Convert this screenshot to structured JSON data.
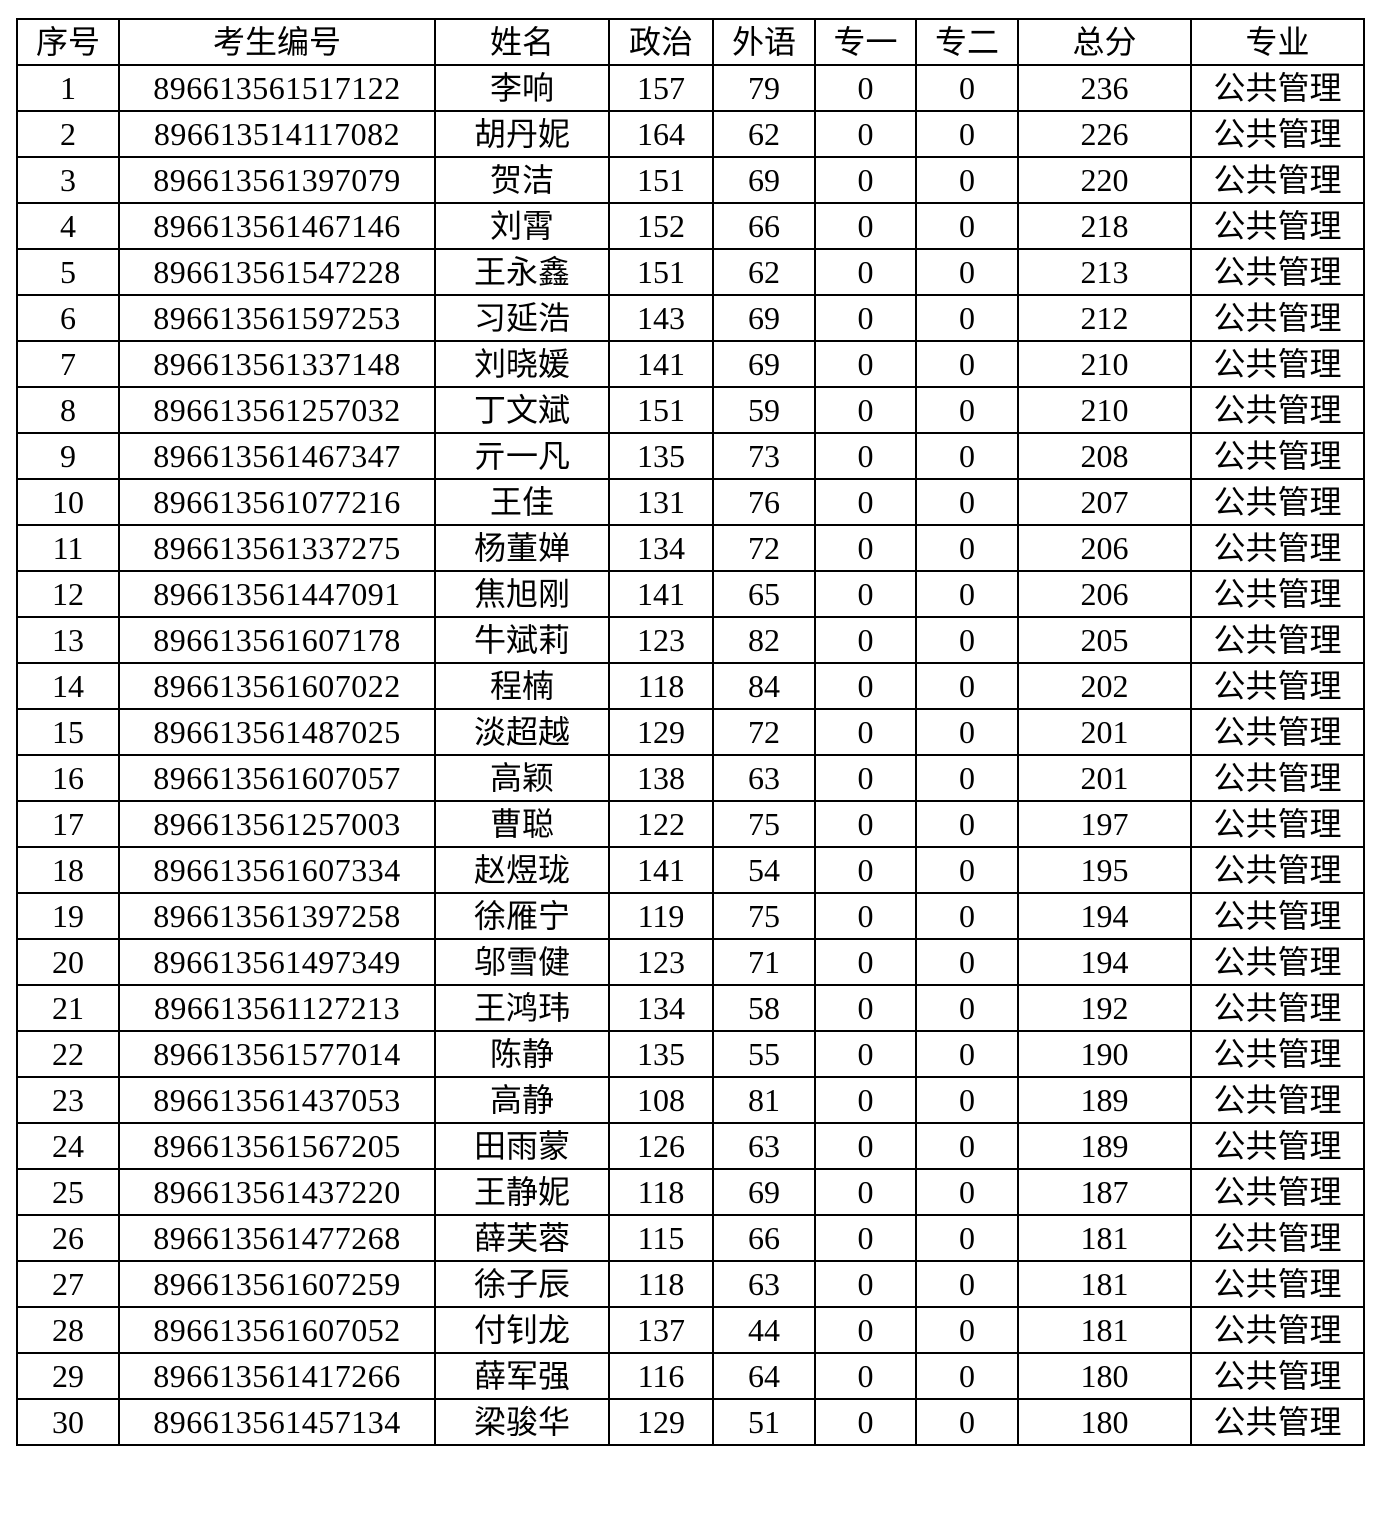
{
  "table": {
    "headers": [
      "序号",
      "考生编号",
      "姓名",
      "政治",
      "外语",
      "专一",
      "专二",
      "总分",
      "专业"
    ],
    "rows": [
      [
        "1",
        "896613561517122",
        "李响",
        "157",
        "79",
        "0",
        "0",
        "236",
        "公共管理"
      ],
      [
        "2",
        "896613514117082",
        "胡丹妮",
        "164",
        "62",
        "0",
        "0",
        "226",
        "公共管理"
      ],
      [
        "3",
        "896613561397079",
        "贺洁",
        "151",
        "69",
        "0",
        "0",
        "220",
        "公共管理"
      ],
      [
        "4",
        "896613561467146",
        "刘霄",
        "152",
        "66",
        "0",
        "0",
        "218",
        "公共管理"
      ],
      [
        "5",
        "896613561547228",
        "王永鑫",
        "151",
        "62",
        "0",
        "0",
        "213",
        "公共管理"
      ],
      [
        "6",
        "896613561597253",
        "习延浩",
        "143",
        "69",
        "0",
        "0",
        "212",
        "公共管理"
      ],
      [
        "7",
        "896613561337148",
        "刘晓媛",
        "141",
        "69",
        "0",
        "0",
        "210",
        "公共管理"
      ],
      [
        "8",
        "896613561257032",
        "丁文斌",
        "151",
        "59",
        "0",
        "0",
        "210",
        "公共管理"
      ],
      [
        "9",
        "896613561467347",
        "亓一凡",
        "135",
        "73",
        "0",
        "0",
        "208",
        "公共管理"
      ],
      [
        "10",
        "896613561077216",
        "王佳",
        "131",
        "76",
        "0",
        "0",
        "207",
        "公共管理"
      ],
      [
        "11",
        "896613561337275",
        "杨董婵",
        "134",
        "72",
        "0",
        "0",
        "206",
        "公共管理"
      ],
      [
        "12",
        "896613561447091",
        "焦旭刚",
        "141",
        "65",
        "0",
        "0",
        "206",
        "公共管理"
      ],
      [
        "13",
        "896613561607178",
        "牛斌莉",
        "123",
        "82",
        "0",
        "0",
        "205",
        "公共管理"
      ],
      [
        "14",
        "896613561607022",
        "程楠",
        "118",
        "84",
        "0",
        "0",
        "202",
        "公共管理"
      ],
      [
        "15",
        "896613561487025",
        "淡超越",
        "129",
        "72",
        "0",
        "0",
        "201",
        "公共管理"
      ],
      [
        "16",
        "896613561607057",
        "高颖",
        "138",
        "63",
        "0",
        "0",
        "201",
        "公共管理"
      ],
      [
        "17",
        "896613561257003",
        "曹聪",
        "122",
        "75",
        "0",
        "0",
        "197",
        "公共管理"
      ],
      [
        "18",
        "896613561607334",
        "赵煜珑",
        "141",
        "54",
        "0",
        "0",
        "195",
        "公共管理"
      ],
      [
        "19",
        "896613561397258",
        "徐雁宁",
        "119",
        "75",
        "0",
        "0",
        "194",
        "公共管理"
      ],
      [
        "20",
        "896613561497349",
        "邬雪健",
        "123",
        "71",
        "0",
        "0",
        "194",
        "公共管理"
      ],
      [
        "21",
        "896613561127213",
        "王鸿玮",
        "134",
        "58",
        "0",
        "0",
        "192",
        "公共管理"
      ],
      [
        "22",
        "896613561577014",
        "陈静",
        "135",
        "55",
        "0",
        "0",
        "190",
        "公共管理"
      ],
      [
        "23",
        "896613561437053",
        "高静",
        "108",
        "81",
        "0",
        "0",
        "189",
        "公共管理"
      ],
      [
        "24",
        "896613561567205",
        "田雨蒙",
        "126",
        "63",
        "0",
        "0",
        "189",
        "公共管理"
      ],
      [
        "25",
        "896613561437220",
        "王静妮",
        "118",
        "69",
        "0",
        "0",
        "187",
        "公共管理"
      ],
      [
        "26",
        "896613561477268",
        "薛芙蓉",
        "115",
        "66",
        "0",
        "0",
        "181",
        "公共管理"
      ],
      [
        "27",
        "896613561607259",
        "徐子辰",
        "118",
        "63",
        "0",
        "0",
        "181",
        "公共管理"
      ],
      [
        "28",
        "896613561607052",
        "付钊龙",
        "137",
        "44",
        "0",
        "0",
        "181",
        "公共管理"
      ],
      [
        "29",
        "896613561417266",
        "薛军强",
        "116",
        "64",
        "0",
        "0",
        "180",
        "公共管理"
      ],
      [
        "30",
        "896613561457134",
        "梁骏华",
        "129",
        "51",
        "0",
        "0",
        "180",
        "公共管理"
      ]
    ]
  }
}
